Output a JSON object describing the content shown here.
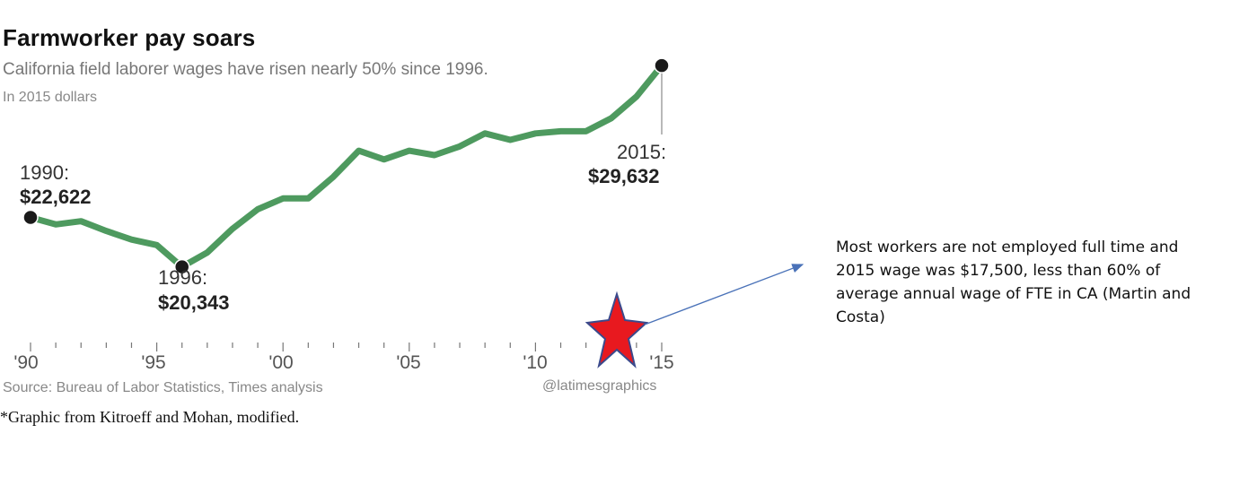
{
  "header": {
    "title": "Farmworker pay soars",
    "subtitle": "California field laborer wages have risen nearly 50% since 1996.",
    "units": "In 2015 dollars"
  },
  "callouts": {
    "c1990": {
      "year": "1990:",
      "value": "$22,622"
    },
    "c1996": {
      "year": "1996:",
      "value": "$20,343"
    },
    "c2015": {
      "year": "2015:",
      "value": "$29,632"
    }
  },
  "ticks": {
    "t90": "'90",
    "t95": "'95",
    "t00": "'00",
    "t05": "'05",
    "t10": "'10",
    "t15": "'15"
  },
  "footer": {
    "source": "Source: Bureau of Labor Statistics, Times analysis",
    "credit": "@latimesgraphics",
    "footnote": "*Graphic from Kitroeff and Mohan, modified."
  },
  "annotation": {
    "note": "Most workers are not employed full time and 2015 wage was $17,500, less than 60% of average annual wage of FTE in CA (Martin and Costa)"
  },
  "colors": {
    "line": "#4e9a5f",
    "marker": "#1a1a1a",
    "star_fill": "#e8191f",
    "star_stroke": "#3b4a8c",
    "arrow": "#4a72b8"
  },
  "chart_data": {
    "type": "line",
    "title": "Farmworker pay soars",
    "subtitle": "California field laborer wages have risen nearly 50% since 1996.",
    "ylabel": "In 2015 dollars",
    "xlim": [
      1990,
      2015
    ],
    "ylim": [
      19500,
      31000
    ],
    "x": [
      1990,
      1991,
      1992,
      1993,
      1994,
      1995,
      1996,
      1997,
      1998,
      1999,
      2000,
      2001,
      2002,
      2003,
      2004,
      2005,
      2006,
      2007,
      2008,
      2009,
      2010,
      2011,
      2012,
      2013,
      2014,
      2015
    ],
    "series": [
      {
        "values": [
          22622,
          22300,
          22450,
          22000,
          21600,
          21350,
          20343,
          21000,
          22100,
          23000,
          23500,
          23500,
          24500,
          25700,
          25300,
          25700,
          25500,
          25900,
          26500,
          26200,
          26500,
          26600,
          26600,
          27200,
          28200,
          29632
        ]
      }
    ],
    "highlighted_points": [
      1990,
      1996,
      2015
    ],
    "x_tick_labels": [
      "'90",
      "'95",
      "'00",
      "'05",
      "'10",
      "'15"
    ]
  }
}
